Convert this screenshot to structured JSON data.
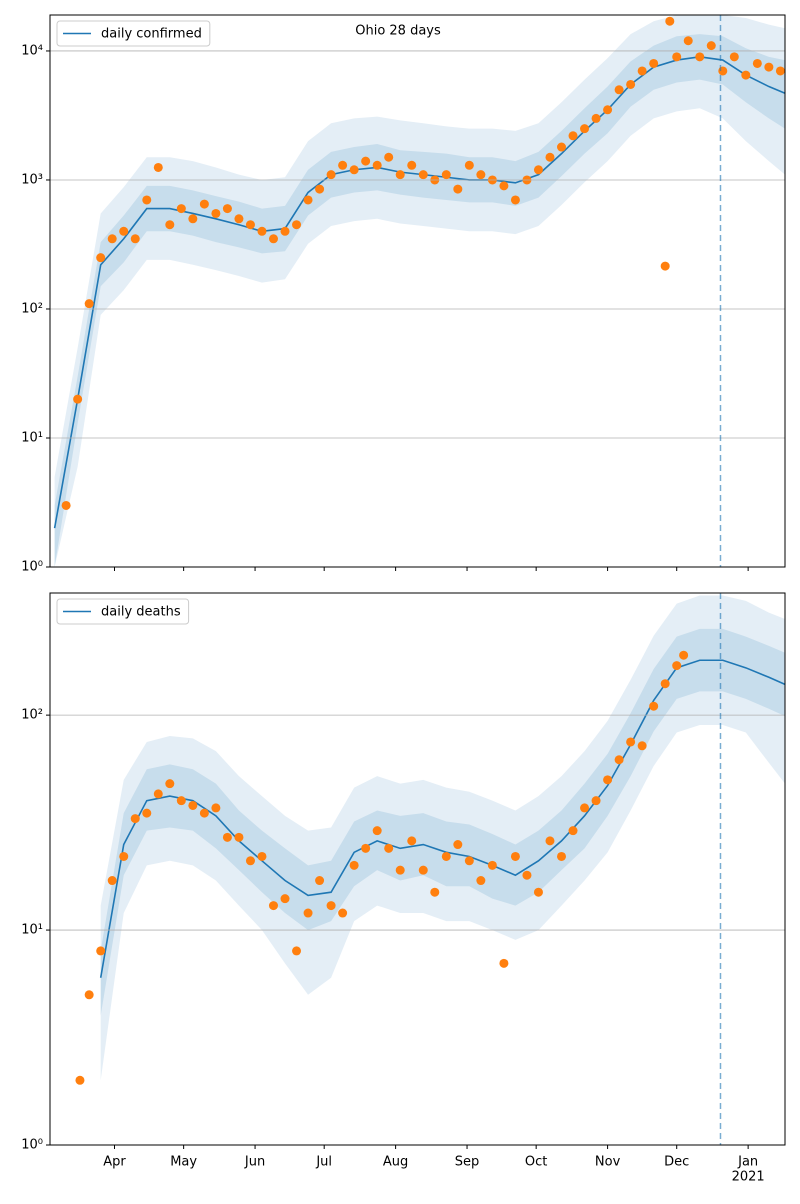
{
  "chart_data": [
    {
      "type": "line",
      "title": "Ohio 28 days",
      "log_y": true,
      "grid": true,
      "legend": "upper left",
      "xlim": [
        3,
        322
      ],
      "ylim": [
        1,
        19000
      ],
      "xticks": [
        31,
        61,
        92,
        122,
        153,
        184,
        214,
        245,
        275,
        306
      ],
      "yticks": [
        {
          "value": 1,
          "label": "10⁰"
        },
        {
          "value": 10,
          "label": "10¹"
        },
        {
          "value": 100,
          "label": "10²"
        },
        {
          "value": 1000,
          "label": "10³"
        },
        {
          "value": 10000,
          "label": "10⁴"
        }
      ],
      "vline": 294,
      "x": [
        5,
        15,
        25,
        35,
        45,
        55,
        65,
        75,
        85,
        95,
        105,
        115,
        125,
        135,
        145,
        155,
        165,
        175,
        185,
        195,
        205,
        215,
        225,
        235,
        245,
        255,
        265,
        275,
        285,
        295,
        305,
        315,
        322
      ],
      "series": [
        {
          "name": "daily confirmed",
          "color": "#1f77b4",
          "values": [
            2,
            20,
            220,
            350,
            600,
            600,
            550,
            500,
            450,
            400,
            420,
            800,
            1100,
            1200,
            1250,
            1150,
            1100,
            1050,
            1000,
            1000,
            950,
            1100,
            1600,
            2400,
            3500,
            5500,
            7500,
            8500,
            9000,
            8500,
            6500,
            5300,
            4700
          ],
          "inner_lower": [
            1,
            13,
            150,
            230,
            400,
            400,
            370,
            330,
            300,
            270,
            280,
            530,
            730,
            800,
            830,
            770,
            730,
            700,
            670,
            670,
            630,
            730,
            1070,
            1600,
            2300,
            3700,
            5000,
            5700,
            6000,
            5500,
            4000,
            3000,
            2500
          ],
          "inner_upper": [
            3,
            30,
            330,
            530,
            900,
            900,
            830,
            750,
            680,
            600,
            630,
            1200,
            1650,
            1800,
            1900,
            1700,
            1650,
            1600,
            1500,
            1500,
            1400,
            1650,
            2400,
            3600,
            5300,
            8300,
            11000,
            13000,
            13500,
            13000,
            10500,
            9000,
            8500
          ],
          "outer_lower": [
            1,
            6,
            90,
            140,
            240,
            240,
            220,
            200,
            180,
            160,
            170,
            320,
            440,
            480,
            500,
            460,
            440,
            420,
            400,
            400,
            380,
            440,
            640,
            960,
            1400,
            2200,
            3000,
            3400,
            3600,
            3000,
            2000,
            1400,
            1100
          ],
          "outer_upper": [
            5,
            50,
            550,
            880,
            1500,
            1500,
            1400,
            1250,
            1100,
            1000,
            1050,
            2000,
            2750,
            3000,
            3100,
            2900,
            2750,
            2600,
            2500,
            2500,
            2400,
            2750,
            4000,
            6000,
            8800,
            13500,
            17000,
            19000,
            19000,
            19000,
            18000,
            16000,
            15000
          ]
        }
      ],
      "observations": {
        "color": "#ff7f0e",
        "x": [
          10,
          15,
          20,
          25,
          30,
          35,
          40,
          45,
          50,
          55,
          60,
          65,
          70,
          75,
          80,
          85,
          90,
          95,
          100,
          105,
          110,
          115,
          120,
          125,
          130,
          135,
          140,
          145,
          150,
          155,
          160,
          165,
          170,
          175,
          180,
          185,
          190,
          195,
          200,
          205,
          210,
          215,
          220,
          225,
          230,
          235,
          240,
          245,
          250,
          255,
          260,
          265,
          270,
          272,
          275,
          280,
          285,
          290,
          295,
          300,
          305,
          310,
          315,
          320
        ],
        "values": [
          3,
          20,
          110,
          250,
          350,
          400,
          350,
          700,
          1250,
          450,
          600,
          500,
          650,
          550,
          600,
          500,
          450,
          400,
          350,
          400,
          450,
          700,
          850,
          1100,
          1300,
          1200,
          1400,
          1300,
          1500,
          1100,
          1300,
          1100,
          1000,
          1100,
          850,
          1300,
          1100,
          1000,
          900,
          700,
          1000,
          1200,
          1500,
          1800,
          2200,
          2500,
          3000,
          3500,
          5000,
          5500,
          7000,
          8000,
          215,
          17000,
          9000,
          12000,
          9000,
          11000,
          7000,
          9000,
          6500,
          8000,
          7500,
          7000
        ]
      }
    },
    {
      "type": "line",
      "log_y": true,
      "grid": true,
      "legend": "upper left",
      "xlim": [
        3,
        322
      ],
      "ylim": [
        1,
        370
      ],
      "xticks": [
        {
          "value": 31,
          "label": "Apr"
        },
        {
          "value": 61,
          "label": "May"
        },
        {
          "value": 92,
          "label": "Jun"
        },
        {
          "value": 122,
          "label": "Jul"
        },
        {
          "value": 153,
          "label": "Aug"
        },
        {
          "value": 184,
          "label": "Sep"
        },
        {
          "value": 214,
          "label": "Oct"
        },
        {
          "value": 245,
          "label": "Nov"
        },
        {
          "value": 275,
          "label": "Dec"
        },
        {
          "value": 306,
          "label": "Jan"
        }
      ],
      "x_sublabel": "2021",
      "yticks": [
        {
          "value": 1,
          "label": "10⁰"
        },
        {
          "value": 10,
          "label": "10¹"
        },
        {
          "value": 100,
          "label": "10²"
        }
      ],
      "vline": 294,
      "x": [
        5,
        15,
        25,
        35,
        45,
        55,
        65,
        75,
        85,
        95,
        105,
        115,
        125,
        135,
        145,
        155,
        165,
        175,
        185,
        195,
        205,
        215,
        225,
        235,
        245,
        255,
        265,
        275,
        285,
        295,
        305,
        315,
        322
      ],
      "series": [
        {
          "name": "daily deaths",
          "color": "#1f77b4",
          "values": [
            null,
            null,
            6,
            25,
            40,
            42,
            40,
            34,
            26,
            21,
            17,
            14.5,
            15,
            23,
            26,
            24,
            25,
            23,
            22,
            20,
            18,
            21,
            26,
            34,
            47,
            73,
            117,
            166,
            180,
            180,
            166,
            150,
            139
          ],
          "inner_lower": [
            null,
            null,
            4,
            18,
            29,
            30,
            29,
            24,
            19,
            15,
            12,
            10,
            11,
            16,
            19,
            17,
            18,
            16,
            16,
            14,
            13,
            15,
            19,
            24,
            34,
            52,
            84,
            119,
            129,
            129,
            119,
            107,
            99
          ],
          "inner_upper": [
            null,
            null,
            8,
            35,
            56,
            59,
            56,
            48,
            36,
            29,
            24,
            20,
            21,
            32,
            36,
            34,
            35,
            32,
            31,
            28,
            25,
            29,
            36,
            48,
            66,
            102,
            164,
            232,
            252,
            252,
            232,
            210,
            195
          ],
          "outer_lower": [
            null,
            null,
            2,
            12,
            20,
            21,
            20,
            17,
            13,
            10,
            7,
            5,
            6,
            11,
            13,
            12,
            12,
            11,
            11,
            10,
            9,
            10,
            13,
            17,
            23,
            36,
            58,
            83,
            90,
            90,
            83,
            60,
            48
          ],
          "outer_upper": [
            null,
            null,
            13,
            50,
            75,
            80,
            78,
            68,
            52,
            42,
            34,
            29,
            30,
            46,
            52,
            48,
            50,
            46,
            44,
            40,
            36,
            42,
            52,
            68,
            94,
            146,
            234,
            330,
            360,
            360,
            340,
            300,
            280
          ]
        }
      ],
      "observations": {
        "color": "#ff7f0e",
        "x": [
          16,
          20,
          25,
          30,
          35,
          40,
          45,
          50,
          55,
          60,
          65,
          70,
          75,
          80,
          85,
          90,
          95,
          100,
          105,
          110,
          115,
          120,
          125,
          130,
          135,
          140,
          145,
          150,
          155,
          160,
          165,
          170,
          175,
          180,
          185,
          190,
          195,
          200,
          205,
          210,
          215,
          220,
          225,
          230,
          235,
          240,
          245,
          250,
          255,
          260,
          265,
          270,
          275,
          278
        ],
        "values": [
          2,
          5,
          8,
          17,
          22,
          33,
          35,
          43,
          48,
          40,
          38,
          35,
          37,
          27,
          27,
          21,
          22,
          13,
          14,
          8,
          12,
          17,
          13,
          12,
          20,
          24,
          29,
          24,
          19,
          26,
          19,
          15,
          22,
          25,
          21,
          17,
          20,
          7,
          22,
          18,
          15,
          26,
          22,
          29,
          37,
          40,
          50,
          62,
          75,
          72,
          110,
          140,
          170,
          190
        ]
      }
    }
  ]
}
